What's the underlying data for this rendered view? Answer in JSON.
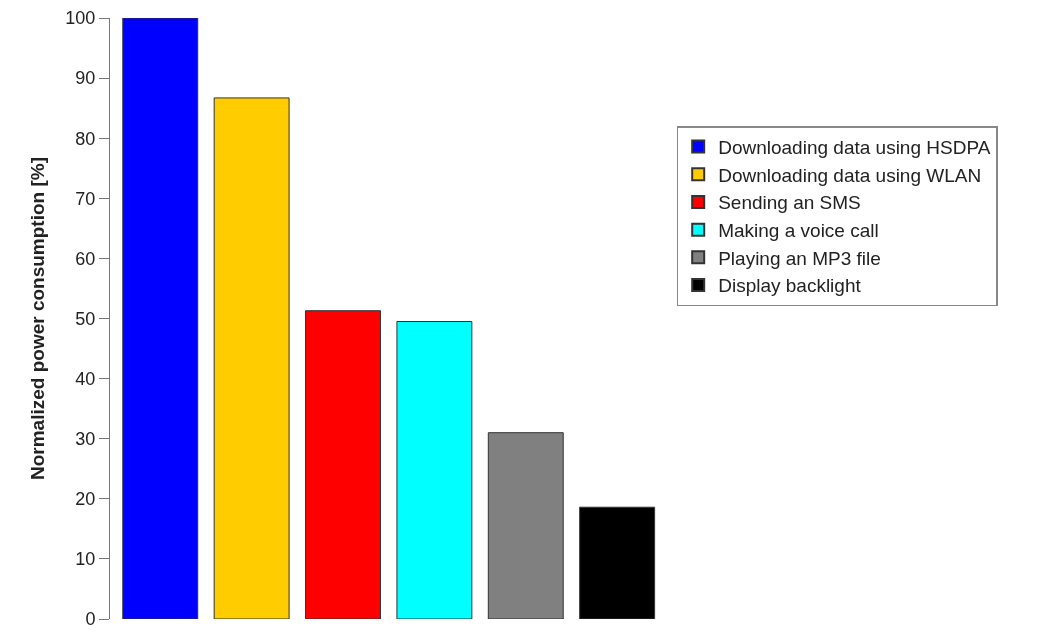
{
  "chart_data": {
    "type": "bar",
    "ylabel": "Normalized power consumption [%]",
    "stacked": true,
    "categories": [
      null,
      null,
      null,
      null,
      null,
      null
    ],
    "series": [
      {
        "name": "Downloading data using HSDPA",
        "color": "#0000ff",
        "values": [
          100,
          null,
          null,
          null,
          null,
          null
        ]
      },
      {
        "name": "Downloading data using WLAN",
        "color": "#ffcc00",
        "values": [
          null,
          86.7,
          null,
          null,
          null,
          null
        ]
      },
      {
        "name": "Sending an SMS",
        "color": "#ff0000",
        "values": [
          null,
          null,
          51.3,
          null,
          null,
          null
        ]
      },
      {
        "name": "Making a voice call",
        "color": "#00ffff",
        "values": [
          null,
          null,
          null,
          49.5,
          null,
          null
        ]
      },
      {
        "name": "Playing an MP3 file",
        "color": "#808080",
        "values": [
          null,
          null,
          null,
          null,
          31.0,
          null
        ]
      },
      {
        "name": "Display backlight",
        "color": "#000000",
        "values": [
          null,
          null,
          null,
          null,
          null,
          18.6
        ]
      }
    ],
    "ylim": [
      0,
      100
    ],
    "yticks": [
      0,
      10,
      20,
      30,
      40,
      50,
      60,
      70,
      80,
      90,
      100
    ],
    "legend": "right",
    "tick_labels": "y"
  }
}
